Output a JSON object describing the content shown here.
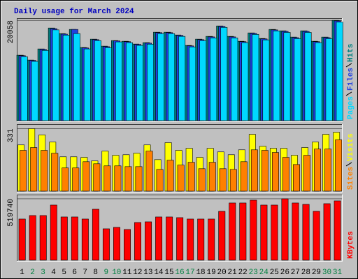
{
  "chart_data": [
    {
      "type": "bar",
      "title": "Daily usage for March 2024",
      "ylim": [
        0,
        20500
      ],
      "yticks": [
        20058
      ],
      "series": [
        {
          "name": "Hits",
          "color": "#008080",
          "values": [
            13093,
            12118,
            14347,
            18525,
            17411,
            18247,
            14625,
            16297,
            14904,
            16018,
            15879,
            15322,
            15601,
            17690,
            17690,
            17132,
            15044,
            16297,
            16854,
            18943,
            16854,
            15879,
            17550,
            16436,
            18247,
            17968,
            16715,
            17968,
            15879,
            16715,
            20058
          ]
        },
        {
          "name": "Files",
          "color": "#2040e0",
          "values": [
            13000,
            12050,
            14250,
            18400,
            17300,
            18247,
            14550,
            16200,
            14800,
            15950,
            15800,
            15250,
            15500,
            17600,
            17600,
            17050,
            14950,
            16200,
            16750,
            18850,
            16750,
            15800,
            17450,
            16350,
            18150,
            17850,
            16600,
            17850,
            15800,
            16600,
            19950
          ]
        },
        {
          "name": "Pages",
          "color": "#00d8ff",
          "values": [
            12800,
            11850,
            14050,
            18150,
            17100,
            17411,
            14350,
            16000,
            14600,
            15750,
            15600,
            15050,
            15300,
            17400,
            17400,
            16850,
            14750,
            16000,
            16550,
            18650,
            16550,
            15600,
            17250,
            16150,
            17950,
            17650,
            16400,
            17650,
            15600,
            16400,
            19700
          ]
        }
      ]
    },
    {
      "type": "bar",
      "ylim": [
        0,
        355
      ],
      "yticks": [
        331
      ],
      "series": [
        {
          "name": "Visits",
          "color": "#ffff00",
          "values": [
            245,
            331,
            298,
            260,
            182,
            182,
            179,
            160,
            212,
            190,
            193,
            201,
            245,
            167,
            257,
            216,
            227,
            179,
            227,
            208,
            193,
            219,
            301,
            238,
            227,
            227,
            190,
            231,
            260,
            301,
            312
          ]
        },
        {
          "name": "Sites",
          "color": "#ff8000",
          "values": [
            216,
            231,
            216,
            201,
            123,
            123,
            156,
            145,
            134,
            134,
            130,
            130,
            212,
            115,
            164,
            138,
            153,
            119,
            153,
            119,
            115,
            156,
            219,
            216,
            205,
            179,
            141,
            190,
            223,
            223,
            272
          ]
        }
      ]
    },
    {
      "type": "bar",
      "ylim": [
        0,
        555000
      ],
      "yticks": [
        519740
      ],
      "categories": [
        "1",
        "2",
        "3",
        "4",
        "5",
        "6",
        "7",
        "8",
        "9",
        "10",
        "11",
        "12",
        "13",
        "14",
        "15",
        "16",
        "17",
        "18",
        "19",
        "20",
        "21",
        "22",
        "23",
        "24",
        "25",
        "26",
        "27",
        "28",
        "29",
        "30",
        "31"
      ],
      "category_colors": [
        "#000000",
        "#008040",
        "#008040",
        "#000000",
        "#000000",
        "#000000",
        "#000000",
        "#000000",
        "#008040",
        "#008040",
        "#000000",
        "#000000",
        "#000000",
        "#000000",
        "#000000",
        "#008040",
        "#008040",
        "#000000",
        "#000000",
        "#000000",
        "#000000",
        "#000000",
        "#008040",
        "#008040",
        "#000000",
        "#000000",
        "#000000",
        "#000000",
        "#000000",
        "#008040",
        "#008040"
      ],
      "series": [
        {
          "name": "KBytes",
          "color": "#ff0000",
          "values": [
            348454,
            377984,
            377984,
            466574,
            366172,
            366172,
            348454,
            431138,
            265770,
            277582,
            259864,
            318924,
            324830,
            366172,
            366172,
            360266,
            348454,
            348454,
            348454,
            413420,
            484292,
            484292,
            507916,
            466574,
            466574,
            519740,
            484292,
            472480,
            413420,
            478386,
            502010
          ]
        }
      ]
    }
  ]
}
